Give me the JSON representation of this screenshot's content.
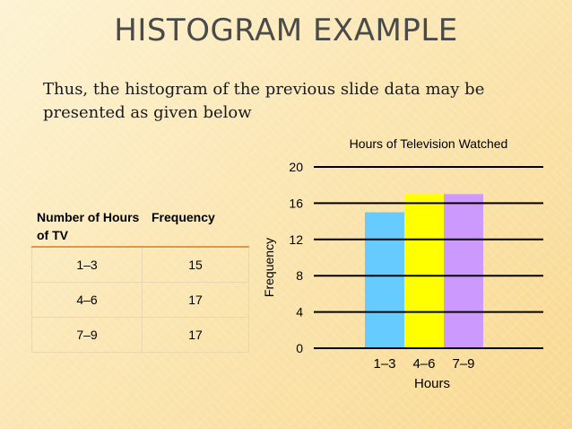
{
  "slide": {
    "title": "HISTOGRAM EXAMPLE",
    "subtitle": "Thus, the histogram of the previous slide data may be presented as given below"
  },
  "table": {
    "headers": [
      "Number of Hours of TV",
      "Frequency"
    ],
    "rows": [
      {
        "hours": "1–3",
        "frequency": "15"
      },
      {
        "hours": "4–6",
        "frequency": "17"
      },
      {
        "hours": "7–9",
        "frequency": "17"
      }
    ]
  },
  "chart_data": {
    "type": "bar",
    "title": "Hours of Television Watched",
    "xlabel": "Hours",
    "ylabel": "Frequency",
    "categories": [
      "1–3",
      "4–6",
      "7–9"
    ],
    "values": [
      15,
      17,
      17
    ],
    "colors": [
      "#66ccff",
      "#ffff00",
      "#cc99ff"
    ],
    "ylim": [
      0,
      20
    ],
    "yticks": [
      0,
      4,
      8,
      12,
      16,
      20
    ],
    "grid": true
  }
}
